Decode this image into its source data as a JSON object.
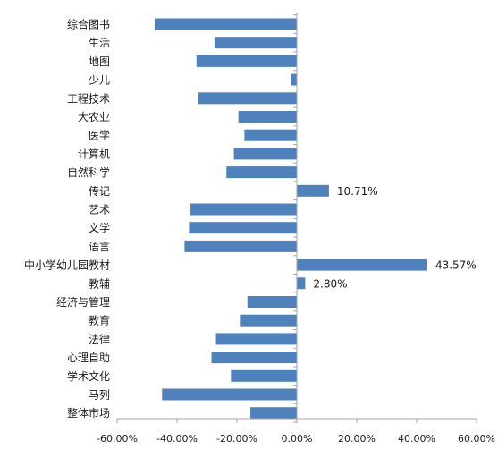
{
  "chart_data": {
    "type": "bar",
    "orientation": "horizontal",
    "categories": [
      "综合图书",
      "生活",
      "地图",
      "少儿",
      "工程技术",
      "大农业",
      "医学",
      "计算机",
      "自然科学",
      "传记",
      "艺术",
      "文学",
      "语言",
      "中小学幼儿园教材",
      "教辅",
      "经济与管理",
      "教育",
      "法律",
      "心理自助",
      "学术文化",
      "马列",
      "整体市场"
    ],
    "values": [
      -47.5,
      -27.5,
      -33.5,
      -2.0,
      -33.0,
      -19.5,
      -17.5,
      -21.0,
      -23.5,
      10.71,
      -35.5,
      -36.0,
      -37.5,
      43.57,
      2.8,
      -16.5,
      -19.0,
      -27.0,
      -28.5,
      -22.0,
      -45.0,
      -15.5
    ],
    "data_labels": [
      {
        "category": "传记",
        "text": "10.71%"
      },
      {
        "category": "中小学幼儿园教材",
        "text": "43.57%"
      },
      {
        "category": "教辅",
        "text": "2.80%"
      }
    ],
    "x_ticks": [
      "-60.00%",
      "-40.00%",
      "-20.00%",
      "0.00%",
      "20.00%",
      "40.00%",
      "60.00%"
    ],
    "xlim": [
      -60,
      60
    ],
    "xlabel": "",
    "ylabel": "",
    "title": "",
    "grid": false,
    "legend": "none",
    "bar_color": "#4F81BD",
    "axis_color": "#A6A6A6",
    "text_color": "#1A1A1A"
  }
}
